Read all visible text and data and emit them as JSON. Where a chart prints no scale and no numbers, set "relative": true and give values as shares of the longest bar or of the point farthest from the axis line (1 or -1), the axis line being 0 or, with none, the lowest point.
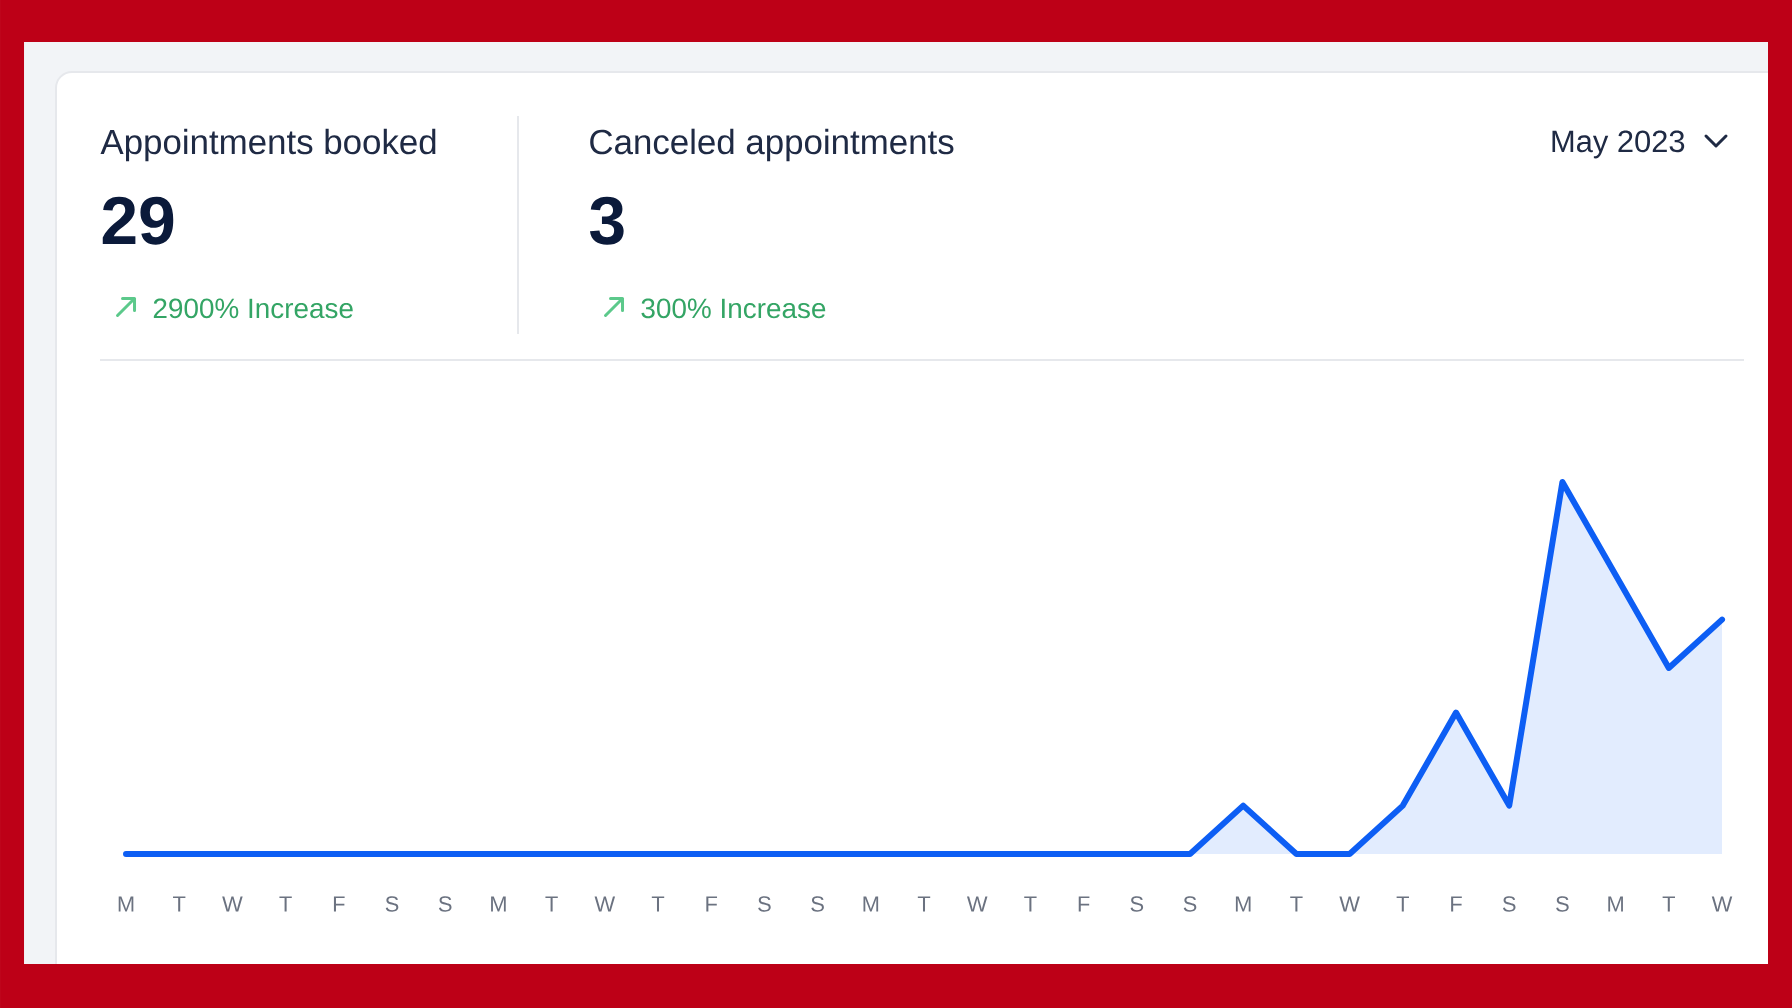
{
  "chart_data": {
    "type": "area",
    "relative": true,
    "categories": [
      "M",
      "T",
      "W",
      "T",
      "F",
      "S",
      "S",
      "M",
      "T",
      "W",
      "T",
      "F",
      "S",
      "S",
      "M",
      "T",
      "W",
      "T",
      "F",
      "S",
      "S",
      "M",
      "T",
      "W",
      "T",
      "F",
      "S",
      "S",
      "M",
      "T",
      "W"
    ],
    "color": "#0d5ef4",
    "values": [
      0,
      0,
      0,
      0,
      0,
      0,
      0,
      0,
      0,
      0,
      0,
      0,
      0,
      0,
      0,
      0,
      0,
      0,
      0,
      0,
      0,
      0.13,
      0,
      0,
      0.13,
      0.38,
      0.13,
      1,
      0.75,
      0.5,
      0.63
    ],
    "annotations": [
      "Appointments booked",
      "29",
      "2900% Increase",
      "Canceled appointments",
      "3",
      "300% Increase",
      "May 2023"
    ]
  }
}
